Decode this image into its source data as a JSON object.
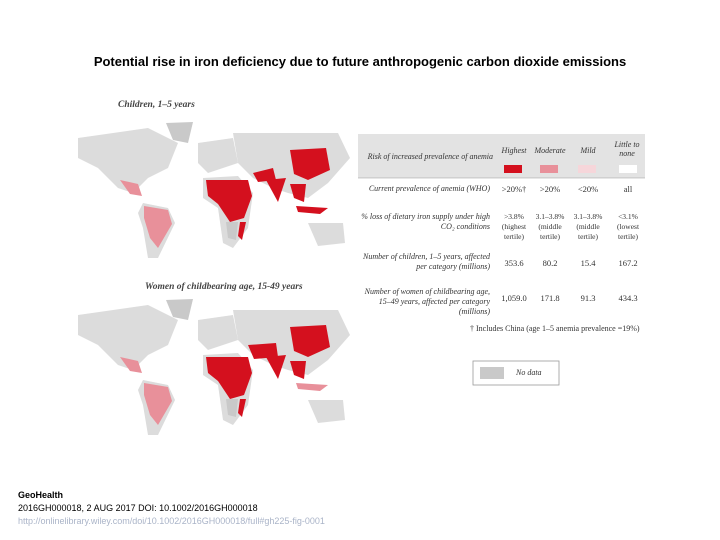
{
  "title": "Potential rise in iron deficiency due to future anthropogenic carbon dioxide emissions",
  "maps": [
    {
      "title": "Children, 1–5 years"
    },
    {
      "title": "Women of childbearing age, 15-49 years"
    }
  ],
  "table": {
    "header": {
      "label": "Risk of increased prevalence of anemia",
      "columns": [
        "Highest",
        "Moderate",
        "Mild",
        "Little to none"
      ]
    },
    "rows": [
      {
        "label": "Current prevalence of anemia (WHO)",
        "cells": [
          ">20%†",
          ">20%",
          "<20%",
          "all"
        ]
      },
      {
        "label": "% loss of dietary iron supply under high CO₂ conditions",
        "cells": [
          ">3.8% (highest tertile)",
          "3.1–3.8% (middle tertile)",
          "3.1–3.8% (middle tertile)",
          "<3.1% (lowest tertile)"
        ]
      },
      {
        "label": "Number of children, 1–5 years, affected per category (millions)",
        "cells": [
          "353.6",
          "80.2",
          "15.4",
          "167.2"
        ]
      },
      {
        "label": "Number of women of childbearing age, 15–49 years, affected per category (millions)",
        "cells": [
          "1,059.0",
          "171.8",
          "91.3",
          "434.3"
        ]
      }
    ],
    "footnote": "† Includes China (age 1–5 anemia prevalence =19%)"
  },
  "legend": {
    "no_data": "No data"
  },
  "footer": {
    "journal": "GeoHealth",
    "citation": "2016GH000018, 2 AUG 2017 DOI: 10.1002/2016GH000018",
    "link": "http://onlinelibrary.wiley.com/doi/10.1002/2016GH000018/full#gh225-fig-0001"
  }
}
